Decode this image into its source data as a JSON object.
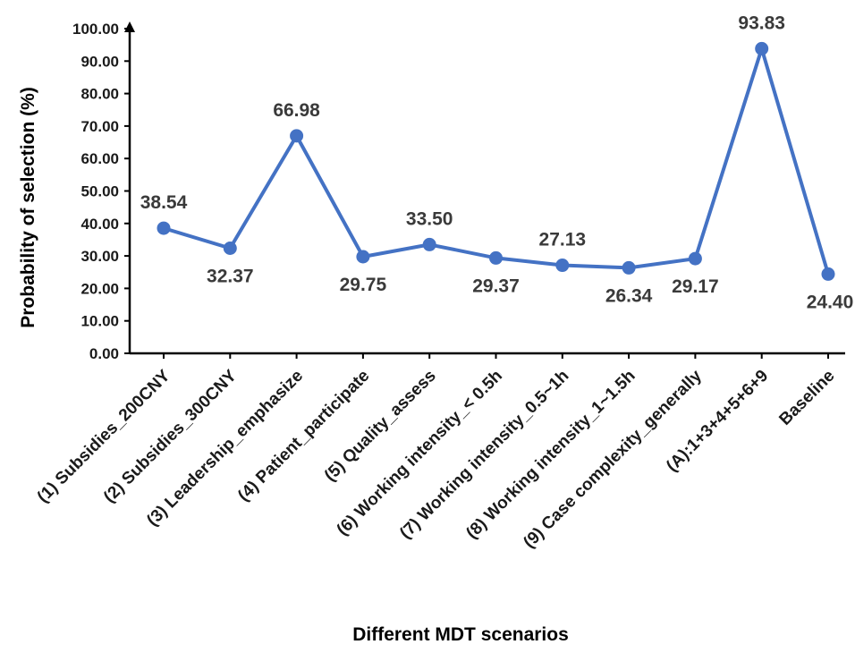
{
  "chart_data": {
    "type": "line",
    "title": "",
    "xlabel": "Different MDT scenarios",
    "ylabel": "Probability of selection (%)",
    "ylim": [
      0,
      100
    ],
    "yticks": [
      "0.00",
      "10.00",
      "20.00",
      "30.00",
      "40.00",
      "50.00",
      "60.00",
      "70.00",
      "80.00",
      "90.00",
      "100.00"
    ],
    "categories": [
      "(1) Subsidies_200CNY",
      "(2) Subsidies_300CNY",
      "(3) Leadership_emphasize",
      "(4) Patient_participate",
      "(5) Quality_assess",
      "(6) Working intensity_< 0.5h",
      "(7) Working intensity_0.5~1h",
      "(8) Working intensity_1~1.5h",
      "(9) Case complexity_generally",
      "(A):1+3+4+5+6+9",
      "Baseline"
    ],
    "series": [
      {
        "values": [
          38.54,
          32.37,
          66.98,
          29.75,
          33.5,
          29.37,
          27.13,
          26.34,
          29.17,
          93.83,
          24.4
        ],
        "labels": [
          "38.54",
          "32.37",
          "66.98",
          "29.75",
          "33.50",
          "29.37",
          "27.13",
          "26.34",
          "29.17",
          "93.83",
          "24.40"
        ],
        "label_positions": [
          "above",
          "below",
          "above",
          "below",
          "above",
          "below",
          "above",
          "below",
          "below",
          "above",
          "below"
        ]
      }
    ],
    "grid": false,
    "legend": "none",
    "colors": {
      "line": "#4472C4",
      "axis": "#000000",
      "label": "#3a3a3a"
    }
  }
}
